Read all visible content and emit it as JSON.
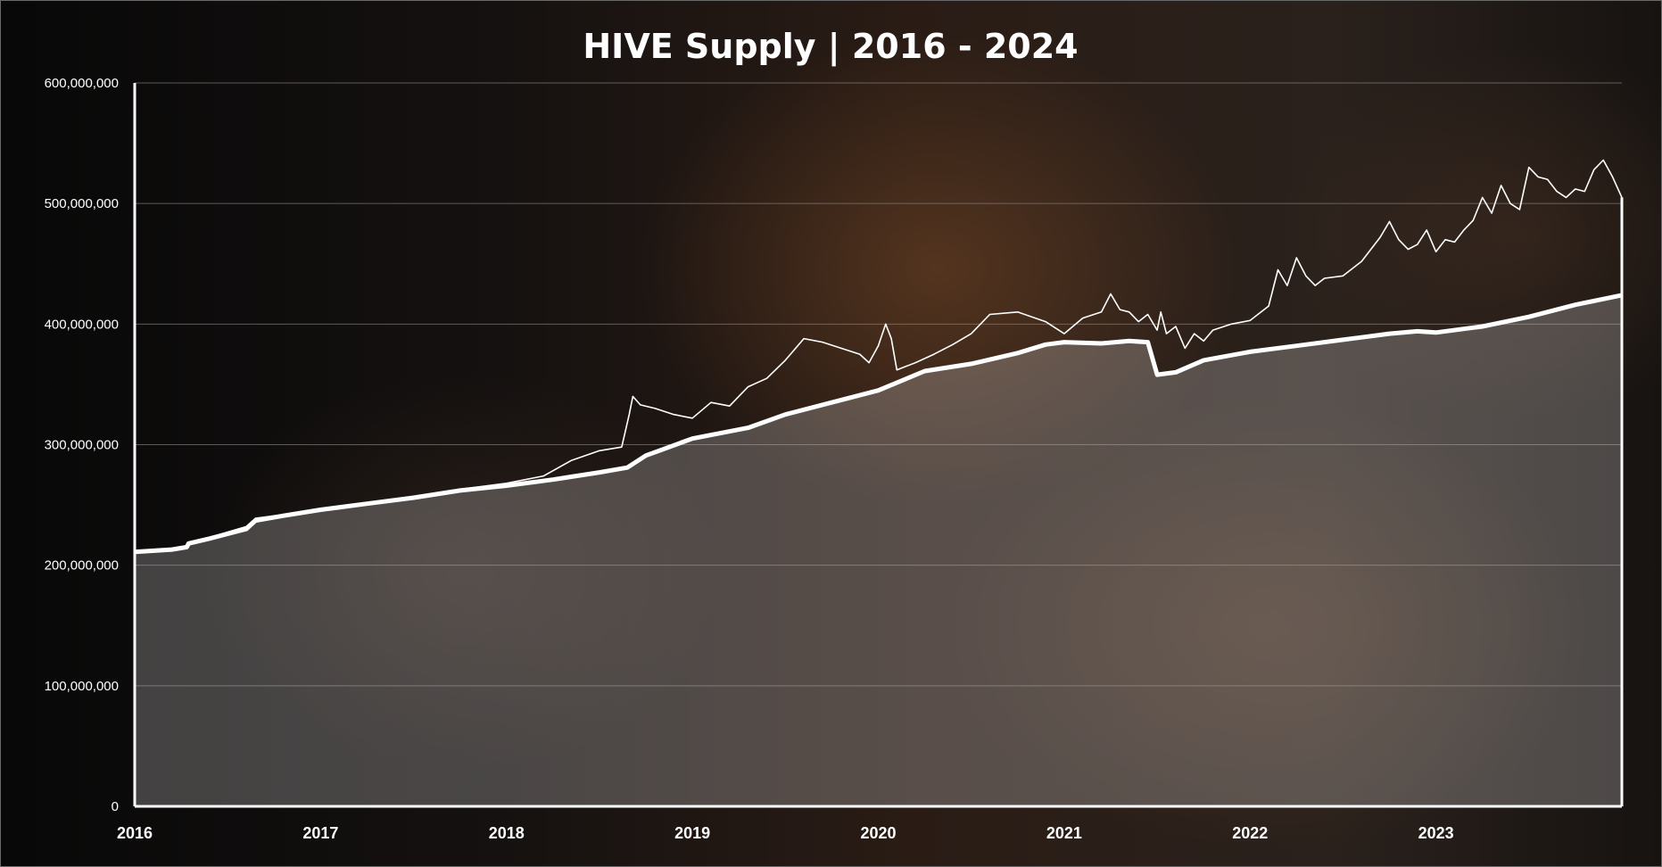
{
  "chart_data": {
    "type": "line",
    "title": "HIVE Supply | 2016 - 2024",
    "xlabel": "",
    "ylabel": "",
    "xlim": [
      2016.0,
      2024.0
    ],
    "ylim": [
      0,
      600000000
    ],
    "grid": true,
    "y_ticks": [
      0,
      100000000,
      200000000,
      300000000,
      400000000,
      500000000,
      600000000
    ],
    "y_tick_labels": [
      "0",
      "100,000,000",
      "200,000,000",
      "300,000,000",
      "400,000,000",
      "500,000,000",
      "600,000,000"
    ],
    "x_ticks": [
      2016,
      2017,
      2018,
      2019,
      2020,
      2021,
      2022,
      2023
    ],
    "x_tick_labels": [
      "2016",
      "2017",
      "2018",
      "2019",
      "2020",
      "2021",
      "2022",
      "2023"
    ],
    "series": [
      {
        "style": "thick-line-with-area-fill",
        "color": "#ffffff",
        "x": [
          2016.0,
          2016.2,
          2016.28,
          2016.29,
          2016.4,
          2016.6,
          2016.65,
          2016.8,
          2017.0,
          2017.25,
          2017.5,
          2017.75,
          2018.0,
          2018.25,
          2018.5,
          2018.65,
          2018.75,
          2019.0,
          2019.3,
          2019.5,
          2019.75,
          2020.0,
          2020.25,
          2020.5,
          2020.75,
          2020.9,
          2021.0,
          2021.2,
          2021.35,
          2021.45,
          2021.5,
          2021.6,
          2021.75,
          2022.0,
          2022.25,
          2022.5,
          2022.75,
          2022.9,
          2023.0,
          2023.25,
          2023.5,
          2023.75,
          2024.0
        ],
        "values": [
          211000000,
          213000000,
          215000000,
          218000000,
          222000000,
          230000000,
          237000000,
          241000000,
          246000000,
          251000000,
          256000000,
          262000000,
          266000000,
          271000000,
          277000000,
          281000000,
          291000000,
          305000000,
          314000000,
          325000000,
          335000000,
          345000000,
          361000000,
          367000000,
          376000000,
          383000000,
          385000000,
          384000000,
          386000000,
          385000000,
          358000000,
          360000000,
          370000000,
          377000000,
          382000000,
          387000000,
          392000000,
          394000000,
          393000000,
          398000000,
          406000000,
          416000000,
          424000000
        ]
      },
      {
        "style": "thin-line",
        "color": "#ffffff",
        "x": [
          2016.0,
          2016.2,
          2016.28,
          2016.29,
          2016.4,
          2016.6,
          2016.65,
          2016.8,
          2017.0,
          2017.25,
          2017.5,
          2017.75,
          2018.0,
          2018.2,
          2018.35,
          2018.5,
          2018.62,
          2018.66,
          2018.68,
          2018.72,
          2018.8,
          2018.9,
          2019.0,
          2019.1,
          2019.2,
          2019.3,
          2019.4,
          2019.5,
          2019.6,
          2019.7,
          2019.8,
          2019.9,
          2019.95,
          2020.0,
          2020.04,
          2020.07,
          2020.1,
          2020.2,
          2020.3,
          2020.4,
          2020.5,
          2020.6,
          2020.75,
          2020.9,
          2021.0,
          2021.1,
          2021.2,
          2021.25,
          2021.3,
          2021.35,
          2021.4,
          2021.45,
          2021.5,
          2021.52,
          2021.55,
          2021.6,
          2021.65,
          2021.7,
          2021.75,
          2021.8,
          2021.9,
          2022.0,
          2022.1,
          2022.15,
          2022.2,
          2022.25,
          2022.3,
          2022.35,
          2022.4,
          2022.5,
          2022.6,
          2022.7,
          2022.75,
          2022.8,
          2022.85,
          2022.9,
          2022.95,
          2023.0,
          2023.05,
          2023.1,
          2023.15,
          2023.2,
          2023.25,
          2023.3,
          2023.35,
          2023.4,
          2023.45,
          2023.5,
          2023.55,
          2023.6,
          2023.65,
          2023.7,
          2023.75,
          2023.8,
          2023.85,
          2023.9,
          2023.95,
          2024.0
        ],
        "values": [
          212000000,
          214000000,
          216000000,
          219000000,
          223000000,
          232000000,
          239000000,
          242000000,
          247000000,
          252000000,
          257000000,
          263000000,
          268000000,
          274000000,
          287000000,
          295000000,
          298000000,
          325000000,
          340000000,
          333000000,
          330000000,
          325000000,
          322000000,
          335000000,
          332000000,
          348000000,
          355000000,
          370000000,
          388000000,
          385000000,
          380000000,
          375000000,
          368000000,
          382000000,
          400000000,
          388000000,
          362000000,
          368000000,
          375000000,
          383000000,
          392000000,
          408000000,
          410000000,
          402000000,
          392000000,
          405000000,
          410000000,
          425000000,
          412000000,
          410000000,
          402000000,
          408000000,
          395000000,
          410000000,
          392000000,
          398000000,
          380000000,
          392000000,
          386000000,
          395000000,
          400000000,
          403000000,
          415000000,
          445000000,
          432000000,
          455000000,
          440000000,
          432000000,
          438000000,
          440000000,
          452000000,
          472000000,
          485000000,
          470000000,
          462000000,
          466000000,
          478000000,
          460000000,
          470000000,
          468000000,
          478000000,
          486000000,
          505000000,
          492000000,
          515000000,
          500000000,
          495000000,
          530000000,
          522000000,
          520000000,
          510000000,
          505000000,
          512000000,
          510000000,
          528000000,
          536000000,
          522000000,
          505000000
        ]
      }
    ]
  }
}
